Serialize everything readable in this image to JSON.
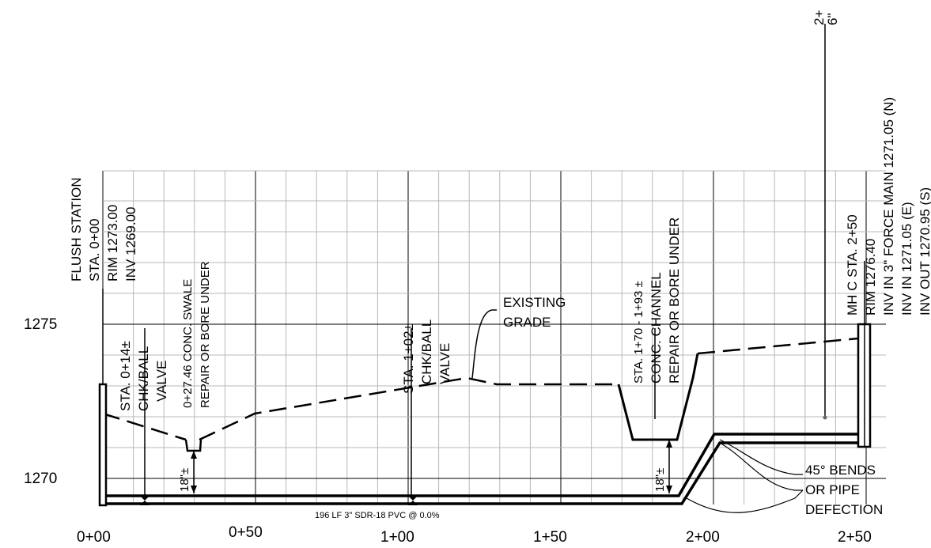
{
  "drawing": {
    "elevation_labels": [
      "1275",
      "1270"
    ],
    "station_labels": [
      "0+00",
      "0+50",
      "1+00",
      "1+50",
      "2+00",
      "2+50"
    ],
    "flush_station": {
      "name": "FLUSH STATION",
      "station": "STA. 0+00",
      "rim": "RIM 1273.00",
      "inv": "INV 1269.00"
    },
    "valve_1": {
      "station": "STA. 0+14±",
      "type": "CHK/BALL",
      "name": "VALVE"
    },
    "swale": {
      "line1": "0+27.46 CONC. SWALE",
      "line2": "REPAIR OR BORE UNDER",
      "depth": "18\"±"
    },
    "valve_2": {
      "station": "STA. 1+02±",
      "type": "CHK/BALL",
      "name": "VALVE"
    },
    "existing_grade": {
      "line1": "EXISTING",
      "line2": "GRADE"
    },
    "channel": {
      "line1": "STA. 1+70 - 1+93 ±",
      "line2": "CONC. CHANNEL",
      "line3": "REPAIR OR BORE UNDER",
      "depth": "18\"±"
    },
    "manhole": {
      "line1": "MH C  STA. 2+50",
      "line2": "RIM 1276.40",
      "line3": "INV IN 3\" FORCE MAIN 1271.05 (N)",
      "line4": "INV IN 1271.05  (E)",
      "line5": "INV OUT 1270.95 (S)"
    },
    "top_right_label": {
      "line1": "2+",
      "line2": "6\""
    },
    "bends": {
      "line1": "45° BENDS",
      "line2": "OR PIPE",
      "line3": "DEFECTION"
    },
    "pipe_label": "196 LF 3\" SDR-18 PVC @ 0.0%"
  }
}
